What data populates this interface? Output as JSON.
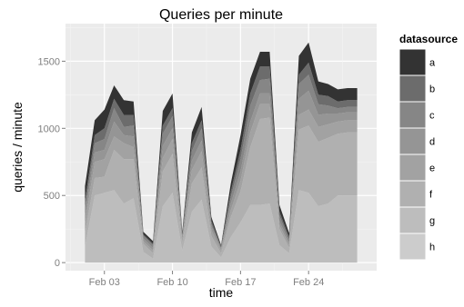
{
  "chart_data": {
    "type": "area",
    "stacked": true,
    "title": "Queries per minute",
    "xlabel": "time",
    "ylabel": "queries / minute",
    "ylim": [
      -60,
      1780
    ],
    "yticks": [
      0,
      500,
      1000,
      1500
    ],
    "xticks": [
      {
        "label": "Feb 03",
        "date": "2016-02-03"
      },
      {
        "label": "Feb 10",
        "date": "2016-02-10"
      },
      {
        "label": "Feb 17",
        "date": "2016-02-17"
      },
      {
        "label": "Feb 24",
        "date": "2016-02-24"
      }
    ],
    "xlim": [
      "2016-01-30",
      "2016-03-02"
    ],
    "grid": true,
    "legend": {
      "title": "datasource",
      "position": "right"
    },
    "x": [
      "2016-02-01",
      "2016-02-02",
      "2016-02-03",
      "2016-02-04",
      "2016-02-05",
      "2016-02-06",
      "2016-02-07",
      "2016-02-08",
      "2016-02-09",
      "2016-02-10",
      "2016-02-11",
      "2016-02-12",
      "2016-02-13",
      "2016-02-14",
      "2016-02-15",
      "2016-02-16",
      "2016-02-17",
      "2016-02-18",
      "2016-02-19",
      "2016-02-20",
      "2016-02-21",
      "2016-02-22",
      "2016-02-23",
      "2016-02-24",
      "2016-02-25",
      "2016-02-26",
      "2016-02-27",
      "2016-02-28",
      "2016-02-29"
    ],
    "series": [
      {
        "name": "h",
        "color": "#cccccc",
        "values": [
          0,
          0,
          0,
          0,
          0,
          0,
          0,
          0,
          0,
          0,
          0,
          0,
          0,
          0,
          0,
          0,
          0,
          0,
          0,
          0,
          0,
          0,
          0,
          0,
          0,
          0,
          0,
          0,
          0
        ]
      },
      {
        "name": "g",
        "color": "#bdbdbd",
        "values": [
          120,
          500,
          520,
          540,
          440,
          480,
          80,
          30,
          420,
          520,
          90,
          380,
          470,
          120,
          40,
          190,
          300,
          430,
          430,
          440,
          130,
          70,
          540,
          520,
          420,
          440,
          500,
          500,
          500
        ]
      },
      {
        "name": "f",
        "color": "#b0b0b0",
        "values": [
          100,
          130,
          120,
          300,
          330,
          290,
          60,
          40,
          260,
          290,
          50,
          210,
          240,
          80,
          30,
          150,
          230,
          430,
          640,
          640,
          120,
          40,
          450,
          500,
          480,
          490,
          460,
          470,
          470
        ]
      },
      {
        "name": "e",
        "color": "#a2a2a2",
        "values": [
          70,
          120,
          130,
          100,
          120,
          90,
          20,
          20,
          100,
          110,
          20,
          100,
          120,
          40,
          20,
          50,
          80,
          110,
          110,
          100,
          30,
          20,
          110,
          120,
          110,
          100,
          90,
          90,
          90
        ]
      },
      {
        "name": "d",
        "color": "#959595",
        "values": [
          60,
          70,
          70,
          110,
          60,
          80,
          20,
          20,
          90,
          80,
          20,
          70,
          80,
          30,
          10,
          50,
          70,
          80,
          80,
          80,
          30,
          20,
          120,
          140,
          90,
          80,
          60,
          60,
          60
        ]
      },
      {
        "name": "c",
        "color": "#868686",
        "values": [
          60,
          70,
          80,
          100,
          60,
          80,
          20,
          20,
          90,
          90,
          20,
          70,
          90,
          20,
          10,
          50,
          90,
          120,
          100,
          110,
          40,
          20,
          110,
          120,
          80,
          60,
          40,
          40,
          40
        ]
      },
      {
        "name": "b",
        "color": "#6c6c6c",
        "values": [
          50,
          60,
          80,
          70,
          90,
          80,
          10,
          10,
          60,
          60,
          10,
          60,
          60,
          20,
          10,
          40,
          70,
          90,
          100,
          90,
          30,
          20,
          70,
          90,
          70,
          70,
          50,
          50,
          50
        ]
      },
      {
        "name": "a",
        "color": "#333333",
        "values": [
          110,
          110,
          140,
          100,
          110,
          100,
          20,
          20,
          110,
          110,
          20,
          80,
          100,
          30,
          10,
          60,
          110,
          110,
          110,
          110,
          50,
          30,
          140,
          150,
          100,
          90,
          90,
          90,
          90
        ]
      }
    ]
  }
}
